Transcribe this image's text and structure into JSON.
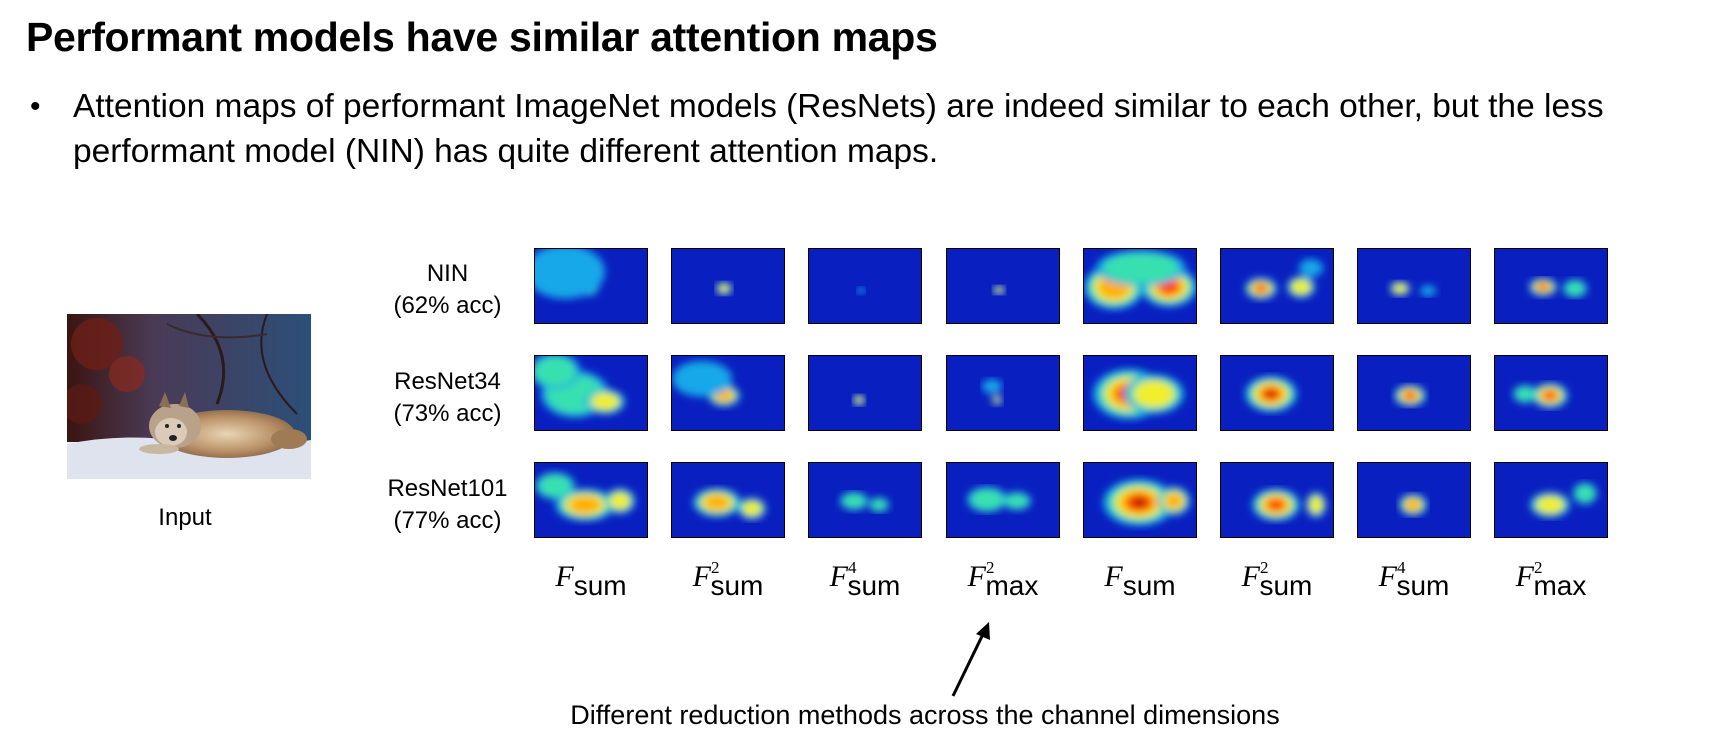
{
  "slide": {
    "title": "Performant models have similar attention maps",
    "bullet": "Attention maps of performant ImageNet models (ResNets) are indeed similar to each other, but the less performant model (NIN) has quite different attention maps.",
    "input_label": "Input",
    "caption": "Different reduction methods across the channel dimensions"
  },
  "rows": [
    {
      "name": "NIN",
      "acc": "(62% acc)"
    },
    {
      "name": "ResNet34",
      "acc": "(73% acc)"
    },
    {
      "name": "ResNet101",
      "acc": "(77% acc)"
    }
  ],
  "columns": [
    {
      "base": "F",
      "sup": "",
      "sub": "sum"
    },
    {
      "base": "F",
      "sup": "2",
      "sub": "sum"
    },
    {
      "base": "F",
      "sup": "4",
      "sub": "sum"
    },
    {
      "base": "F",
      "sup": "2",
      "sub": "max"
    },
    {
      "base": "F",
      "sup": "",
      "sub": "sum"
    },
    {
      "base": "F",
      "sup": "2",
      "sub": "sum"
    },
    {
      "base": "F",
      "sup": "4",
      "sub": "sum"
    },
    {
      "base": "F",
      "sup": "2",
      "sub": "max"
    }
  ],
  "colors": {
    "map_background": "#0a1fc0",
    "map_hot": "#c81a00",
    "map_warm": "#ffd400",
    "map_mid": "#24c8d8"
  }
}
